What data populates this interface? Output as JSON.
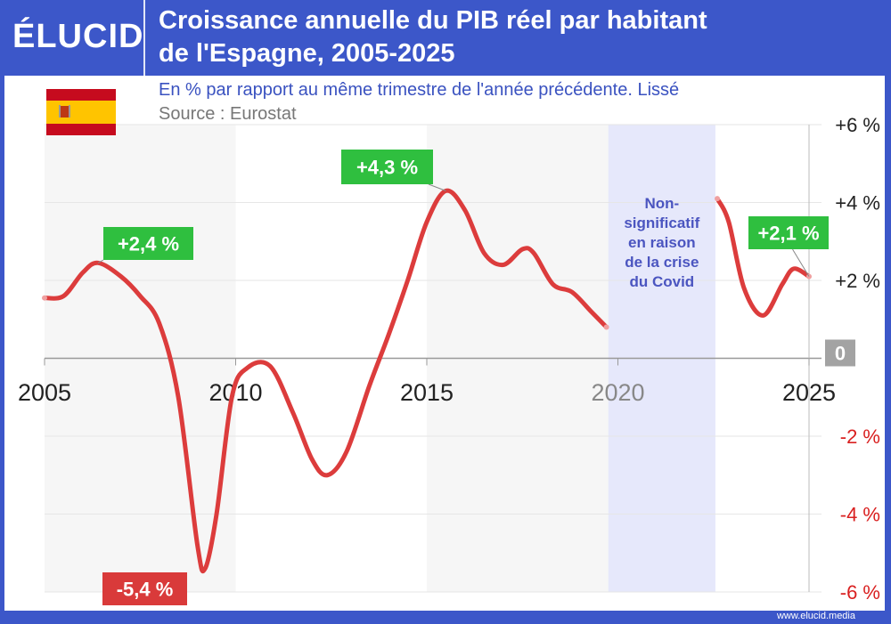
{
  "header": {
    "logo": "ÉLUCID",
    "title_line1": "Croissance annuelle du PIB réel par habitant",
    "title_line2": "de l'Espagne, 2005-2025"
  },
  "subtitle": "En % par rapport au même trimestre de l'année précédente. Lissé",
  "source": "Source : Eurostat",
  "footer": "www.elucid.media",
  "colors": {
    "brand": "#3c57c9",
    "line": "#dc3c3c",
    "positive_label": "#2fbf3f",
    "negative_label": "#d93a3a",
    "covid_band": "#e6e8fb",
    "band": "#f6f6f6"
  },
  "chart_data": {
    "type": "line",
    "xlim": [
      2005,
      2025
    ],
    "ylim": [
      -6,
      6
    ],
    "x_ticks": [
      "2005",
      "2010",
      "2015",
      "2020",
      "2025"
    ],
    "y_ticks": [
      {
        "v": 6,
        "label": "+6 %"
      },
      {
        "v": 4,
        "label": "+4 %"
      },
      {
        "v": 2,
        "label": "+2 %"
      },
      {
        "v": 0,
        "label": "0"
      },
      {
        "v": -2,
        "label": "-2 %"
      },
      {
        "v": -4,
        "label": "-4 %"
      },
      {
        "v": -6,
        "label": "-6 %"
      }
    ],
    "grid": true,
    "series": [
      {
        "segment": "pre-covid",
        "points": [
          [
            2005.0,
            1.55
          ],
          [
            2005.5,
            1.6
          ],
          [
            2006.0,
            2.2
          ],
          [
            2006.4,
            2.45
          ],
          [
            2007.0,
            2.1
          ],
          [
            2007.5,
            1.6
          ],
          [
            2008.0,
            0.9
          ],
          [
            2008.5,
            -1.0
          ],
          [
            2009.0,
            -4.8
          ],
          [
            2009.2,
            -5.4
          ],
          [
            2009.5,
            -4.0
          ],
          [
            2009.9,
            -1.0
          ],
          [
            2010.3,
            -0.25
          ],
          [
            2010.9,
            -0.2
          ],
          [
            2011.5,
            -1.4
          ],
          [
            2012.0,
            -2.6
          ],
          [
            2012.4,
            -3.0
          ],
          [
            2012.9,
            -2.4
          ],
          [
            2013.5,
            -0.7
          ],
          [
            2014.0,
            0.6
          ],
          [
            2014.5,
            2.0
          ],
          [
            2015.0,
            3.5
          ],
          [
            2015.5,
            4.3
          ],
          [
            2016.0,
            3.8
          ],
          [
            2016.5,
            2.7
          ],
          [
            2017.0,
            2.4
          ],
          [
            2017.5,
            2.8
          ],
          [
            2017.8,
            2.7
          ],
          [
            2018.3,
            1.9
          ],
          [
            2018.8,
            1.7
          ],
          [
            2019.3,
            1.2
          ],
          [
            2019.7,
            0.8
          ]
        ]
      },
      {
        "segment": "post-covid",
        "points": [
          [
            2022.6,
            4.1
          ],
          [
            2022.9,
            3.5
          ],
          [
            2023.3,
            1.8
          ],
          [
            2023.8,
            1.1
          ],
          [
            2024.3,
            1.9
          ],
          [
            2024.6,
            2.3
          ],
          [
            2025.0,
            2.1
          ]
        ]
      }
    ],
    "covid_band": {
      "x": [
        2019.75,
        2022.55
      ],
      "label": [
        "Non-",
        "significatif",
        "en raison",
        "de la crise",
        "du Covid"
      ]
    },
    "annotations": [
      {
        "label": "+2,4 %",
        "x": 2006.4,
        "y": 2.45,
        "kind": "positive"
      },
      {
        "label": "+4,3 %",
        "x": 2015.5,
        "y": 4.3,
        "kind": "positive"
      },
      {
        "label": "-5,4 %",
        "x": 2009.2,
        "y": -5.4,
        "kind": "negative"
      },
      {
        "label": "+2,1 %",
        "x": 2025.0,
        "y": 2.1,
        "kind": "positive"
      }
    ]
  }
}
